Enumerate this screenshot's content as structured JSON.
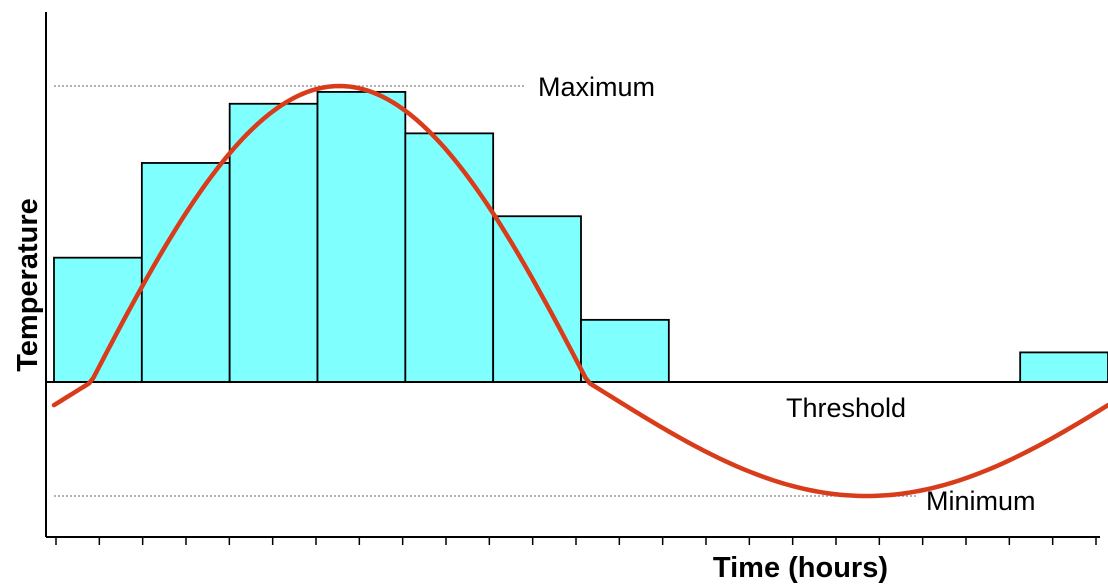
{
  "chart_data": {
    "type": "bar",
    "xlabel": "Time (hours)",
    "ylabel": "Temperature",
    "x_tick_count": 25,
    "x_range": [
      0,
      24
    ],
    "ylim": [
      -1.2,
      1.0
    ],
    "bars": [
      0.42,
      0.74,
      0.94,
      0.98,
      0.84,
      0.56,
      0.21,
      0,
      0,
      0,
      0,
      0.1
    ],
    "bar_width_hours": 2,
    "curve": {
      "type": "sine",
      "mean": -0.1,
      "amplitude": 1.1,
      "period_hours": 24,
      "peak_hour": 6.5,
      "color": "#d83c1a"
    },
    "reference_lines": {
      "maximum": {
        "label": "Maximum",
        "value": 1.0
      },
      "threshold": {
        "label": "Threshold",
        "value": 0
      },
      "minimum": {
        "label": "Minimum",
        "value": -1.2
      }
    },
    "colors": {
      "bar_fill": "#80ffff",
      "bar_stroke": "#000000",
      "curve": "#d83c1a",
      "axis": "#000000",
      "reference": "#999999"
    }
  }
}
